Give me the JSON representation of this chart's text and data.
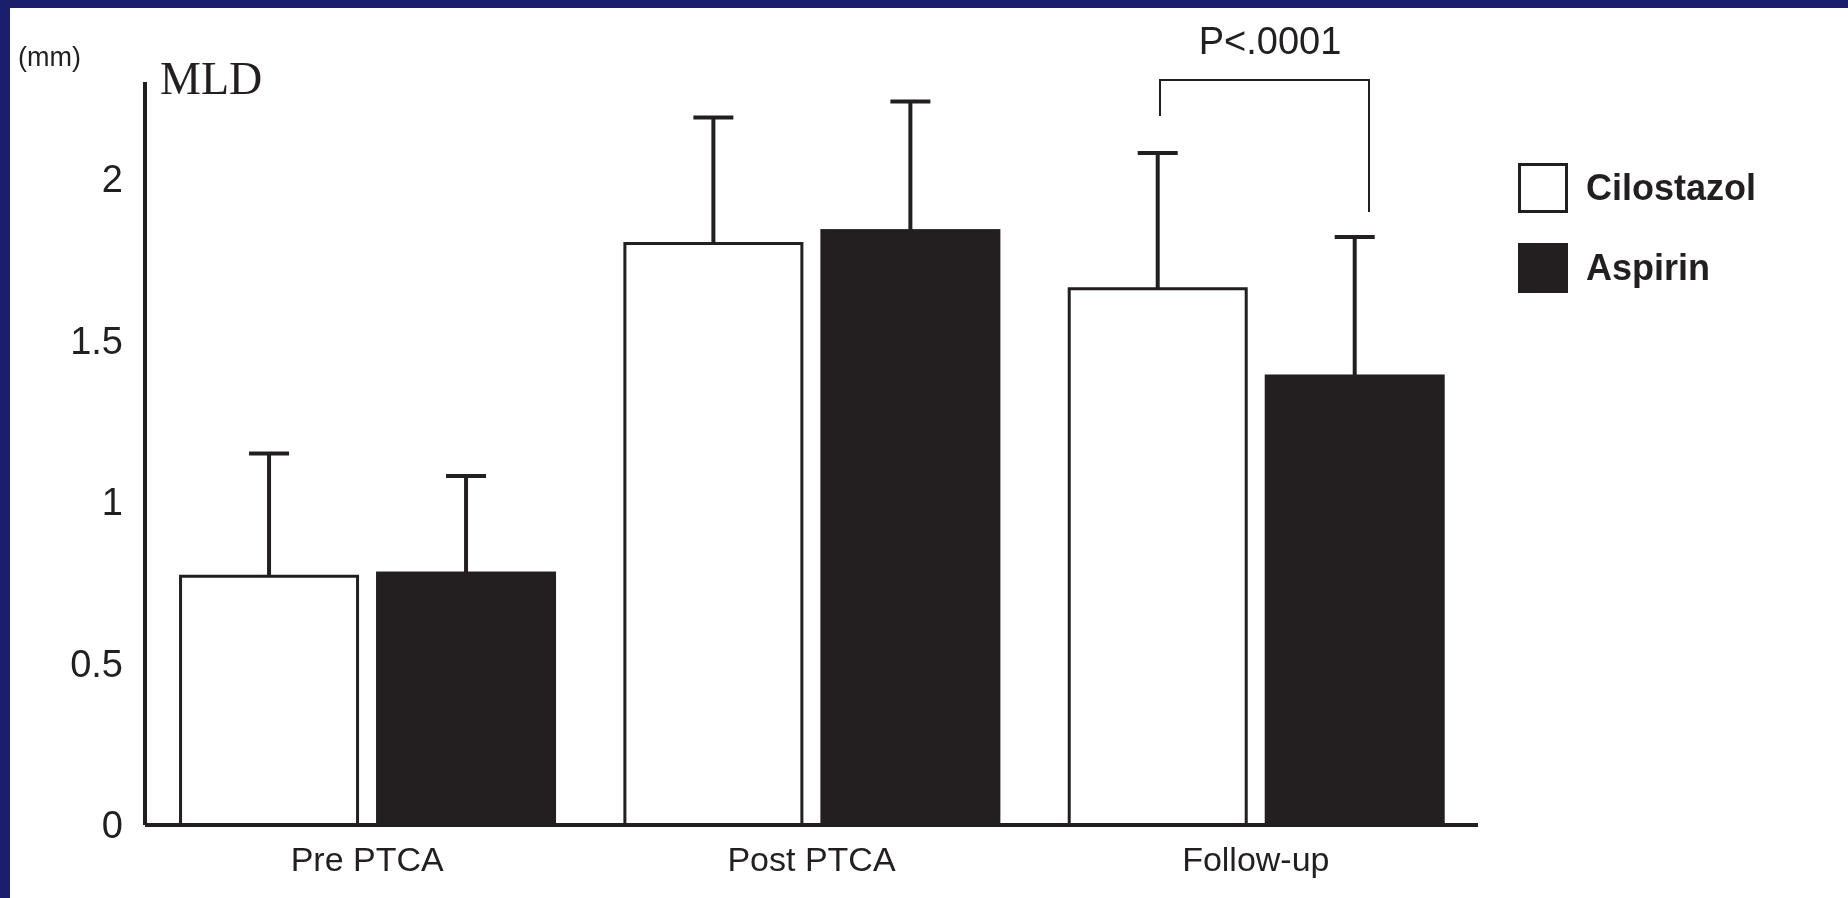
{
  "chart_data": {
    "type": "bar",
    "title": "MLD",
    "ylabel": "(mm)",
    "categories": [
      "Pre PTCA",
      "Post PTCA",
      "Follow-up"
    ],
    "series": [
      {
        "name": "Cilostazol",
        "color": "#ffffff",
        "values": [
          0.77,
          1.8,
          1.66
        ],
        "errors": [
          [
            0.77,
            1.15
          ],
          [
            1.8,
            2.19
          ],
          [
            1.66,
            2.08
          ]
        ]
      },
      {
        "name": "Aspirin",
        "color": "#231f20",
        "values": [
          0.78,
          1.84,
          1.39
        ],
        "errors": [
          [
            0.78,
            1.08
          ],
          [
            1.84,
            2.24
          ],
          [
            1.39,
            1.82
          ]
        ]
      }
    ],
    "ylim": [
      0,
      2.3
    ],
    "yticks": [
      0,
      0.5,
      1,
      1.5,
      2
    ],
    "legend": "top right",
    "annotations": [
      "P<.0001"
    ]
  }
}
